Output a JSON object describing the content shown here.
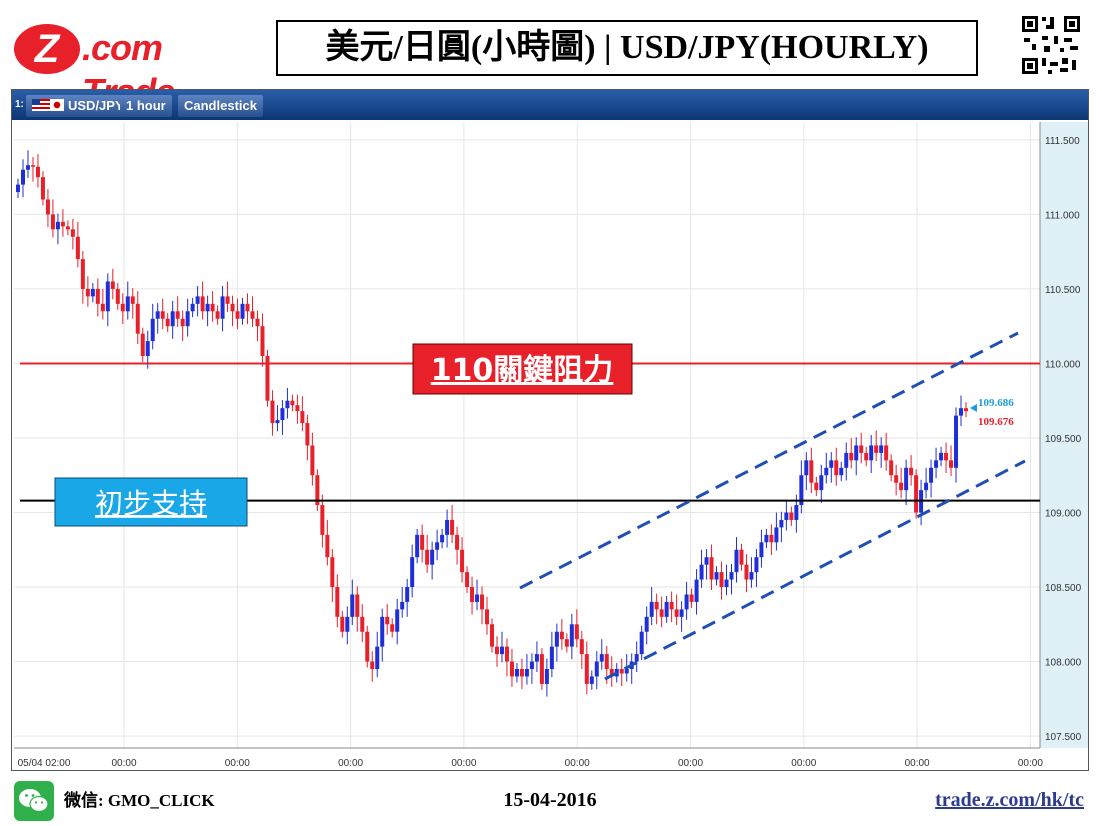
{
  "header": {
    "logo_z": "Z",
    "logo_text": ".com Trade",
    "title": "美元/日圓(小時圖) | USD/JPY(HOURLY)"
  },
  "toolbar": {
    "index": "1:",
    "symbol": "USD/JPY",
    "interval": "1 hour",
    "chart_style": "Candlestick"
  },
  "annotations": {
    "resistance_label": "110關鍵阻力",
    "support_label": "初步支持",
    "resistance_color": "#e8202a",
    "support_color": "#1aa7e8",
    "channel_color": "#1f4fb5",
    "bid_label": "109.686",
    "ask_label": "109.676",
    "bid_color": "#1aa0d8",
    "ask_color": "#e8202a"
  },
  "chart_data": {
    "type": "candlestick",
    "symbol": "USD/JPY",
    "interval": "1 hour",
    "ylim": [
      107.42,
      111.62
    ],
    "y_ticks": [
      "111.500",
      "111.000",
      "110.500",
      "110.000",
      "109.500",
      "109.000",
      "108.500",
      "108.000",
      "107.500"
    ],
    "x_tick_labels": [
      "05/04 02:00",
      "00:00",
      "00:00",
      "00:00",
      "00:00",
      "00:00",
      "00:00",
      "00:00",
      "00:00",
      "00:00"
    ],
    "resistance_level": 110.0,
    "support_level": 109.08,
    "up_color": "#1f2fd8",
    "down_color": "#e8202a",
    "closes": [
      111.2,
      111.3,
      111.33,
      111.32,
      111.25,
      111.1,
      111.0,
      110.9,
      110.95,
      110.92,
      110.9,
      110.85,
      110.7,
      110.5,
      110.45,
      110.5,
      110.4,
      110.35,
      110.55,
      110.5,
      110.4,
      110.35,
      110.45,
      110.4,
      110.2,
      110.05,
      110.15,
      110.3,
      110.35,
      110.3,
      110.25,
      110.35,
      110.3,
      110.25,
      110.35,
      110.4,
      110.45,
      110.35,
      110.4,
      110.35,
      110.3,
      110.45,
      110.4,
      110.35,
      110.3,
      110.4,
      110.35,
      110.3,
      110.25,
      110.05,
      109.75,
      109.6,
      109.62,
      109.7,
      109.75,
      109.72,
      109.68,
      109.6,
      109.45,
      109.25,
      109.05,
      108.85,
      108.7,
      108.5,
      108.3,
      108.2,
      108.3,
      108.45,
      108.3,
      108.2,
      108.0,
      107.95,
      108.1,
      108.3,
      108.25,
      108.2,
      108.35,
      108.4,
      108.5,
      108.7,
      108.85,
      108.75,
      108.65,
      108.75,
      108.8,
      108.85,
      108.95,
      108.85,
      108.75,
      108.6,
      108.5,
      108.4,
      108.45,
      108.35,
      108.25,
      108.1,
      108.05,
      108.1,
      108.0,
      107.9,
      107.95,
      107.9,
      107.95,
      108.0,
      108.05,
      107.85,
      107.95,
      108.1,
      108.2,
      108.15,
      108.1,
      108.25,
      108.15,
      108.05,
      107.85,
      107.9,
      108.0,
      108.05,
      107.95,
      107.9,
      107.95,
      107.92,
      107.95,
      108.0,
      108.05,
      108.2,
      108.3,
      108.4,
      108.35,
      108.3,
      108.4,
      108.35,
      108.3,
      108.35,
      108.45,
      108.4,
      108.55,
      108.65,
      108.7,
      108.55,
      108.6,
      108.5,
      108.55,
      108.6,
      108.75,
      108.65,
      108.55,
      108.6,
      108.7,
      108.8,
      108.85,
      108.8,
      108.9,
      108.95,
      109.0,
      108.95,
      109.05,
      109.25,
      109.35,
      109.2,
      109.15,
      109.25,
      109.3,
      109.35,
      109.25,
      109.3,
      109.4,
      109.35,
      109.45,
      109.4,
      109.35,
      109.45,
      109.4,
      109.45,
      109.35,
      109.25,
      109.2,
      109.15,
      109.3,
      109.25,
      109.0,
      109.15,
      109.2,
      109.3,
      109.35,
      109.4,
      109.35,
      109.3,
      109.65,
      109.7,
      109.68
    ]
  },
  "footer": {
    "wechat_label": "微信: GMO_CLICK",
    "date": "15-04-2016",
    "url": "trade.z.com/hk/tc"
  }
}
